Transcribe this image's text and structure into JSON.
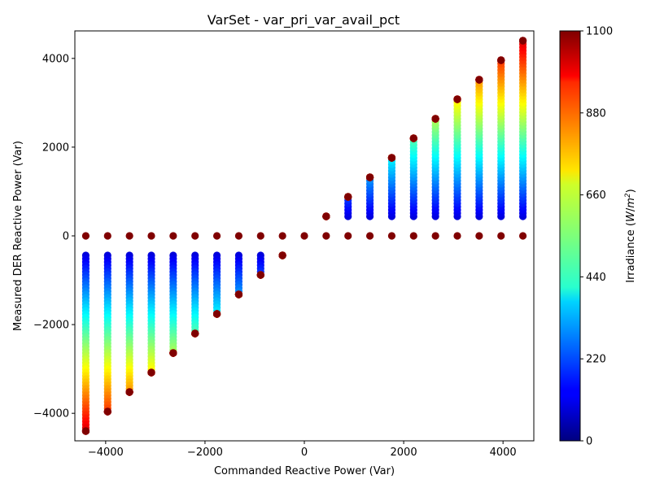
{
  "chart_data": {
    "type": "scatter",
    "title": "VarSet - var_pri_var_avail_pct",
    "xlabel": "Commanded Reactive Power (Var)",
    "ylabel": "Measured DER Reactive Power (Var)",
    "xlim": [
      -4620,
      4620
    ],
    "ylim": [
      -4620,
      4620
    ],
    "xticks": [
      -4000,
      -2000,
      0,
      2000,
      4000
    ],
    "yticks": [
      -4000,
      -2000,
      0,
      2000,
      4000
    ],
    "xtick_labels": [
      "−4000",
      "−2000",
      "0",
      "2000",
      "4000"
    ],
    "ytick_labels": [
      "−4000",
      "−2000",
      "0",
      "2000",
      "4000"
    ],
    "grid": false,
    "colormap": "jet",
    "colorbar": {
      "label": "Irradiance (W/m²)",
      "label_main": "Irradiance (",
      "label_w": "W",
      "label_slash": "/",
      "label_m": "m",
      "label_sup": "2",
      "label_end": ")",
      "min": 0,
      "max": 1100,
      "ticks": [
        0,
        220,
        440,
        660,
        880,
        1100
      ],
      "tick_labels": [
        "0",
        "220",
        "440",
        "660",
        "880",
        "1100"
      ]
    },
    "commanded_levels": [
      -4400,
      -3960,
      -3520,
      -3080,
      -2640,
      -2200,
      -1760,
      -1320,
      -880,
      -440,
      0,
      440,
      880,
      1320,
      1760,
      2200,
      2640,
      3080,
      3520,
      3960,
      4400
    ],
    "max_reactive_power": 4400,
    "irradiance_range": [
      100,
      1100
    ],
    "irradiance_at_zero_output": 1100,
    "marker_color_rule": "measured = commanded capped at irradiance/1000 * 4400; zero-output points at 1100 W/m²"
  }
}
